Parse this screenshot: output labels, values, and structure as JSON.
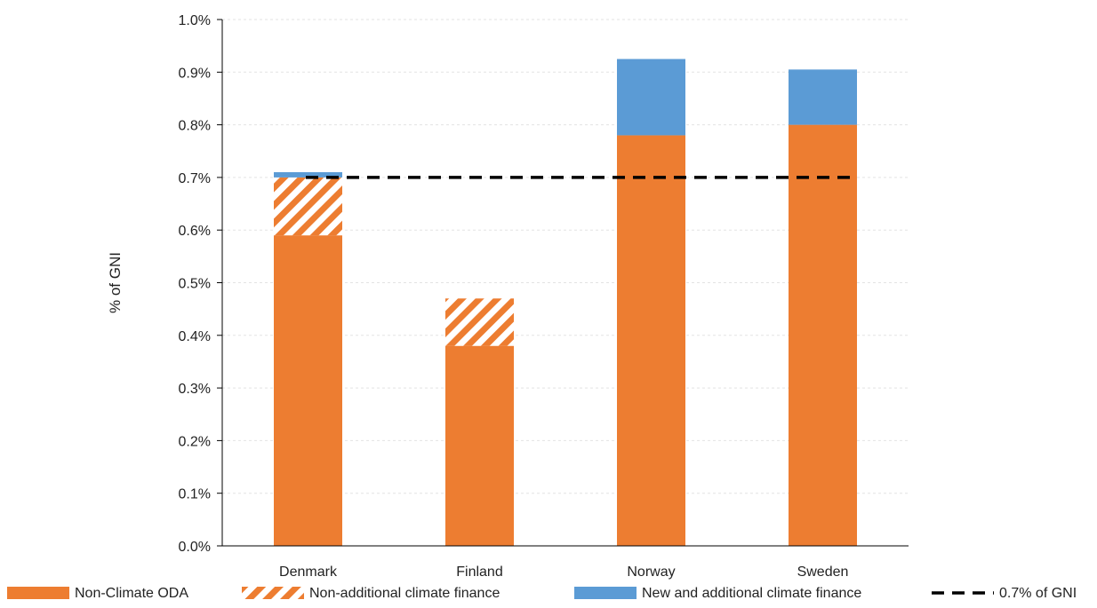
{
  "chart_data": {
    "type": "bar",
    "stacked": true,
    "title": "",
    "xlabel": "",
    "ylabel": "% of GNI",
    "ylim": [
      0,
      1.0
    ],
    "y_ticks": [
      0.0,
      0.1,
      0.2,
      0.3,
      0.4,
      0.5,
      0.6,
      0.7,
      0.8,
      0.9,
      1.0
    ],
    "y_tick_labels": [
      "0.0%",
      "0.1%",
      "0.2%",
      "0.3%",
      "0.4%",
      "0.5%",
      "0.6%",
      "0.7%",
      "0.8%",
      "0.9%",
      "1.0%"
    ],
    "grid": true,
    "legend_position": "bottom",
    "categories": [
      "Denmark",
      "Finland",
      "Norway",
      "Sweden"
    ],
    "series": [
      {
        "name": "Non-Climate ODA",
        "values": [
          0.59,
          0.38,
          0.78,
          0.8
        ],
        "color": "#ED7D31",
        "pattern": "solid"
      },
      {
        "name": "Non-additional climate finance",
        "values": [
          0.11,
          0.09,
          0.0,
          0.0
        ],
        "color": "#ED7D31",
        "pattern": "hatched"
      },
      {
        "name": "New and additional climate finance",
        "values": [
          0.01,
          0.0,
          0.145,
          0.105
        ],
        "color": "#5B9BD5",
        "pattern": "solid"
      }
    ],
    "reference_line": {
      "name": "0.7% of GNI",
      "value": 0.7,
      "color": "#000000",
      "style": "dashed"
    }
  }
}
